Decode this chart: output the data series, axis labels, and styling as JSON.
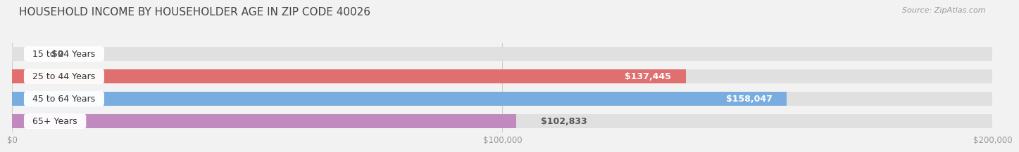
{
  "title": "HOUSEHOLD INCOME BY HOUSEHOLDER AGE IN ZIP CODE 40026",
  "source": "Source: ZipAtlas.com",
  "categories": [
    "15 to 24 Years",
    "25 to 44 Years",
    "45 to 64 Years",
    "65+ Years"
  ],
  "values": [
    0,
    137445,
    158047,
    102833
  ],
  "bar_colors": [
    "#e8b48a",
    "#e07070",
    "#7aaddf",
    "#c08abf"
  ],
  "value_labels": [
    "$0",
    "$137,445",
    "$158,047",
    "$102,833"
  ],
  "value_label_inside": [
    false,
    true,
    true,
    false
  ],
  "xlim": [
    0,
    200000
  ],
  "xticks": [
    0,
    100000,
    200000
  ],
  "xtick_labels": [
    "$0",
    "$100,000",
    "$200,000"
  ],
  "background_color": "#f2f2f2",
  "bar_bg_color": "#e0e0e0",
  "title_fontsize": 11,
  "bar_height": 0.62,
  "bar_label_fontsize": 9,
  "cat_label_fontsize": 9
}
